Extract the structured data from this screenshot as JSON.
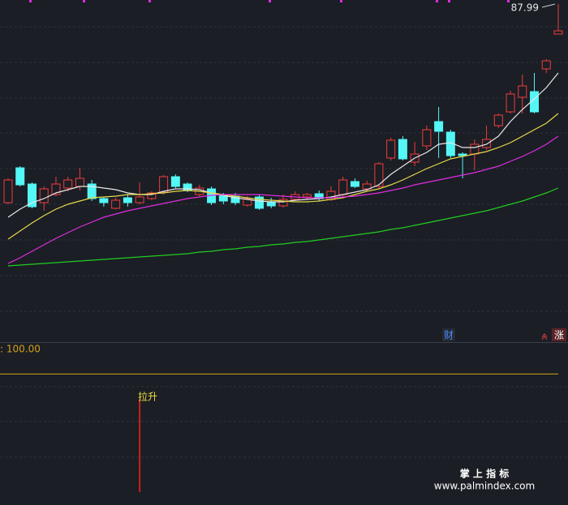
{
  "chart_data": [
    {
      "type": "candlestick",
      "ylim": [
        46.49,
        88.49
      ],
      "up_color": "#f03c3c",
      "down_color": "#54f6f6",
      "open": [
        63.49,
        67.79,
        65.79,
        63.49,
        64.49,
        65.29,
        65.49,
        65.79,
        63.99,
        62.79,
        64.09,
        63.49,
        63.99,
        64.79,
        66.69,
        65.79,
        64.49,
        65.19,
        64.39,
        64.29,
        63.19,
        64.19,
        63.49,
        63.09,
        63.89,
        64.19,
        64.59,
        63.89,
        64.49,
        66.09,
        65.19,
        65.49,
        68.99,
        71.29,
        68.49,
        70.49,
        73.49,
        72.19,
        69.49,
        69.49,
        70.29,
        72.99,
        74.69,
        76.49,
        77.19,
        79.99,
        84.29
      ],
      "close": [
        66.29,
        65.69,
        62.99,
        65.19,
        65.79,
        66.29,
        66.49,
        63.99,
        63.49,
        63.79,
        63.49,
        64.19,
        64.69,
        66.69,
        65.49,
        64.99,
        65.29,
        63.49,
        63.69,
        63.49,
        63.99,
        62.79,
        63.09,
        63.89,
        64.49,
        64.49,
        63.99,
        64.89,
        66.29,
        65.49,
        65.79,
        68.29,
        71.19,
        68.89,
        69.49,
        72.49,
        72.29,
        69.29,
        69.29,
        70.69,
        71.29,
        74.29,
        76.89,
        77.89,
        74.69,
        80.99,
        84.69
      ],
      "high": [
        66.49,
        67.99,
        65.99,
        65.49,
        66.69,
        66.69,
        67.79,
        66.29,
        64.19,
        64.09,
        64.49,
        65.99,
        64.89,
        66.89,
        66.99,
        65.99,
        65.69,
        65.49,
        64.69,
        64.69,
        64.29,
        64.49,
        64.09,
        64.49,
        64.89,
        64.69,
        64.99,
        65.49,
        66.69,
        66.49,
        66.19,
        68.49,
        71.49,
        71.69,
        70.99,
        72.99,
        75.29,
        72.49,
        69.69,
        71.29,
        72.99,
        74.49,
        77.29,
        79.29,
        79.49,
        81.19,
        87.99
      ],
      "low": [
        63.29,
        65.49,
        62.79,
        62.49,
        64.29,
        64.89,
        64.99,
        63.69,
        62.99,
        62.69,
        62.99,
        63.29,
        63.79,
        64.49,
        65.29,
        64.79,
        64.19,
        63.19,
        63.29,
        63.19,
        62.99,
        62.59,
        62.79,
        62.89,
        63.69,
        63.89,
        63.69,
        63.69,
        64.29,
        65.29,
        64.89,
        65.29,
        68.69,
        68.69,
        67.99,
        69.99,
        68.99,
        68.99,
        66.49,
        67.49,
        69.99,
        72.69,
        74.49,
        74.49,
        74.49,
        79.49,
        84.29
      ],
      "moving_averages": [
        {
          "color": "#e8e8e8",
          "values": [
            61.69,
            62.69,
            63.49,
            63.99,
            64.69,
            65.09,
            65.49,
            65.49,
            65.29,
            65.09,
            64.69,
            64.49,
            64.49,
            64.89,
            65.19,
            65.19,
            65.09,
            64.69,
            64.39,
            64.09,
            63.89,
            63.69,
            63.59,
            63.59,
            63.79,
            63.89,
            63.99,
            64.19,
            64.49,
            64.79,
            65.09,
            65.69,
            66.99,
            67.99,
            68.99,
            69.69,
            70.69,
            70.89,
            70.29,
            70.29,
            70.69,
            71.69,
            73.49,
            74.99,
            76.29,
            77.69,
            79.49
          ]
        },
        {
          "color": "#e6d84a",
          "values": [
            58.99,
            59.99,
            60.99,
            61.89,
            62.69,
            63.29,
            63.69,
            64.09,
            64.19,
            64.29,
            64.49,
            64.49,
            64.59,
            64.69,
            64.89,
            64.99,
            64.89,
            64.69,
            64.49,
            64.29,
            64.09,
            63.89,
            63.79,
            63.69,
            63.59,
            63.59,
            63.69,
            63.89,
            64.09,
            64.49,
            64.89,
            65.19,
            65.69,
            66.29,
            66.99,
            67.69,
            68.29,
            68.89,
            69.19,
            69.49,
            69.79,
            70.29,
            70.89,
            71.69,
            72.49,
            73.29,
            74.49
          ]
        },
        {
          "color": "#e02ce0",
          "values": [
            55.99,
            56.69,
            57.49,
            58.29,
            59.09,
            59.79,
            60.49,
            61.09,
            61.69,
            62.09,
            62.49,
            62.79,
            63.09,
            63.39,
            63.69,
            63.99,
            64.19,
            64.39,
            64.49,
            64.49,
            64.49,
            64.49,
            64.39,
            64.29,
            64.19,
            64.09,
            64.09,
            64.09,
            64.19,
            64.29,
            64.49,
            64.69,
            64.99,
            65.29,
            65.69,
            65.99,
            66.29,
            66.59,
            66.89,
            67.19,
            67.59,
            67.99,
            68.59,
            69.19,
            69.89,
            70.69,
            71.69
          ]
        },
        {
          "color": "#22cc22",
          "values": [
            55.69,
            55.79,
            55.89,
            55.99,
            56.09,
            56.19,
            56.29,
            56.39,
            56.49,
            56.59,
            56.69,
            56.79,
            56.89,
            56.99,
            57.09,
            57.19,
            57.39,
            57.49,
            57.69,
            57.79,
            57.99,
            58.09,
            58.29,
            58.39,
            58.59,
            58.69,
            58.89,
            59.09,
            59.29,
            59.49,
            59.69,
            59.89,
            60.19,
            60.39,
            60.69,
            60.99,
            61.29,
            61.59,
            61.89,
            62.19,
            62.49,
            62.89,
            63.29,
            63.69,
            64.19,
            64.69,
            65.29
          ]
        }
      ],
      "badges": [
        "财",
        "涨"
      ]
    },
    {
      "type": "signal",
      "ylim": [
        0,
        125
      ],
      "level": 100,
      "level_label": ": 100.00",
      "level_color": "#d4a017",
      "color": "#d01c1c",
      "signal_label": "拉升",
      "values": [
        null,
        null,
        null,
        null,
        null,
        null,
        null,
        null,
        null,
        null,
        null,
        79,
        null,
        null,
        null,
        null,
        null,
        null,
        null,
        null,
        null,
        null,
        null,
        null,
        null,
        null,
        null,
        null,
        null,
        null,
        null,
        null,
        null,
        null,
        null,
        null,
        null,
        null,
        null,
        null,
        null,
        null,
        null,
        null,
        null,
        null,
        null
      ]
    }
  ],
  "watermark": {
    "title": "掌 上 指 标",
    "url": "www.palmindex.com"
  }
}
